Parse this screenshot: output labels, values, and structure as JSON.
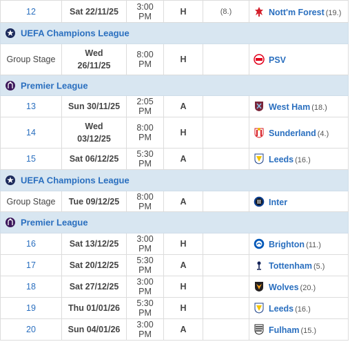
{
  "competitions": {
    "ucl": "UEFA Champions League",
    "pl": "Premier League"
  },
  "rows": [
    {
      "kind": "fixture",
      "round": "12",
      "date": [
        "Sat 22/11/25"
      ],
      "time": "3:00 PM",
      "venue": "H",
      "pos": "(8.)",
      "opponent": "Nott'm Forest",
      "opp_pos": "(19.)",
      "crest": "nottm-forest-crest-icon"
    },
    {
      "kind": "comp",
      "comp": "ucl"
    },
    {
      "kind": "fixture",
      "round": "Group Stage",
      "date": [
        "Wed",
        "26/11/25"
      ],
      "time": "8:00 PM",
      "venue": "H",
      "pos": "",
      "opponent": "PSV",
      "opp_pos": "",
      "crest": "psv-crest-icon"
    },
    {
      "kind": "comp",
      "comp": "pl"
    },
    {
      "kind": "fixture",
      "round": "13",
      "date": [
        "Sun 30/11/25"
      ],
      "time": "2:05 PM",
      "venue": "A",
      "pos": "",
      "opponent": "West Ham",
      "opp_pos": "(18.)",
      "crest": "west-ham-crest-icon"
    },
    {
      "kind": "fixture",
      "round": "14",
      "date": [
        "Wed",
        "03/12/25"
      ],
      "time": "8:00 PM",
      "venue": "H",
      "pos": "",
      "opponent": "Sunderland",
      "opp_pos": "(4.)",
      "crest": "sunderland-crest-icon"
    },
    {
      "kind": "fixture",
      "round": "15",
      "date": [
        "Sat 06/12/25"
      ],
      "time": "5:30 PM",
      "venue": "A",
      "pos": "",
      "opponent": "Leeds",
      "opp_pos": "(16.)",
      "crest": "leeds-crest-icon"
    },
    {
      "kind": "comp",
      "comp": "ucl"
    },
    {
      "kind": "fixture",
      "round": "Group Stage",
      "date": [
        "Tue 09/12/25"
      ],
      "time": "8:00 PM",
      "venue": "A",
      "pos": "",
      "opponent": "Inter",
      "opp_pos": "",
      "crest": "inter-crest-icon"
    },
    {
      "kind": "comp",
      "comp": "pl"
    },
    {
      "kind": "fixture",
      "round": "16",
      "date": [
        "Sat 13/12/25"
      ],
      "time": "3:00 PM",
      "venue": "H",
      "pos": "",
      "opponent": "Brighton",
      "opp_pos": "(11.)",
      "crest": "brighton-crest-icon"
    },
    {
      "kind": "fixture",
      "round": "17",
      "date": [
        "Sat 20/12/25"
      ],
      "time": "5:30 PM",
      "venue": "A",
      "pos": "",
      "opponent": "Tottenham",
      "opp_pos": "(5.)",
      "crest": "tottenham-crest-icon"
    },
    {
      "kind": "fixture",
      "round": "18",
      "date": [
        "Sat 27/12/25"
      ],
      "time": "3:00 PM",
      "venue": "H",
      "pos": "",
      "opponent": "Wolves",
      "opp_pos": "(20.)",
      "crest": "wolves-crest-icon"
    },
    {
      "kind": "fixture",
      "round": "19",
      "date": [
        "Thu 01/01/26"
      ],
      "time": "5:30 PM",
      "venue": "H",
      "pos": "",
      "opponent": "Leeds",
      "opp_pos": "(16.)",
      "crest": "leeds-crest-icon"
    },
    {
      "kind": "fixture",
      "round": "20",
      "date": [
        "Sun 04/01/26"
      ],
      "time": "3:00 PM",
      "venue": "A",
      "pos": "",
      "opponent": "Fulham",
      "opp_pos": "(15.)",
      "crest": "fulham-crest-icon"
    }
  ],
  "colors": {
    "link": "#2a6fbf",
    "comp_band": "#d8e6f1",
    "forest_red": "#d4202c",
    "psv_red": "#e3001b",
    "westham_claret": "#7a263a",
    "sunderland_red": "#d71920",
    "leeds_yellow": "#f5c400",
    "inter_blue": "#0b3c8c",
    "brighton_blue": "#0057b8",
    "tottenham_navy": "#132257",
    "wolves_gold": "#f4a11d",
    "fulham_black": "#222222"
  }
}
